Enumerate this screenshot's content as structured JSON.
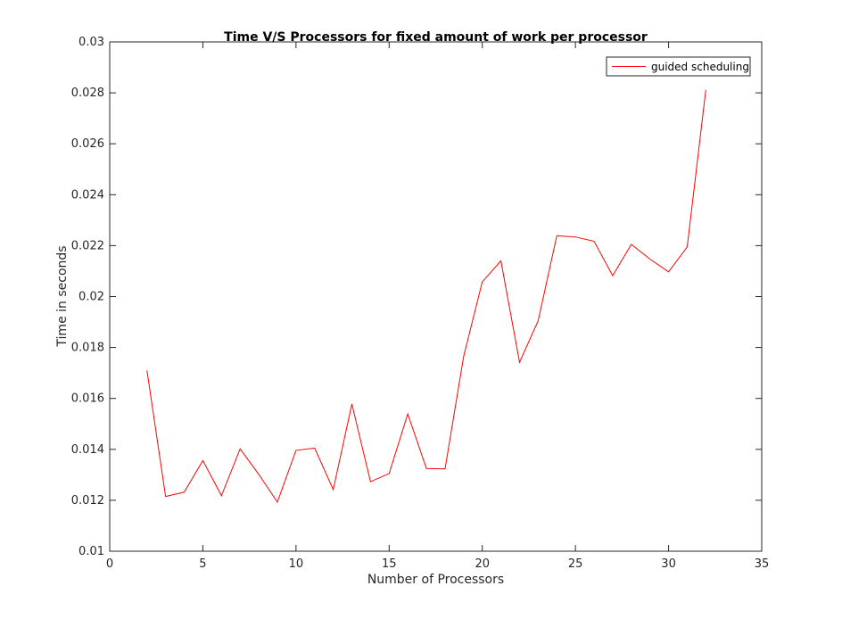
{
  "chart_data": {
    "type": "line",
    "title": "Time V/S Processors for fixed amount of work per processor",
    "xlabel": "Number of Processors",
    "ylabel": "Time in seconds",
    "xlim": [
      0,
      35
    ],
    "ylim": [
      0.01,
      0.03
    ],
    "xticks": [
      "0",
      "5",
      "10",
      "15",
      "20",
      "25",
      "30",
      "35"
    ],
    "yticks": [
      "0.01",
      "0.012",
      "0.014",
      "0.016",
      "0.018",
      "0.02",
      "0.022",
      "0.024",
      "0.026",
      "0.028",
      "0.03"
    ],
    "grid": false,
    "legend_position": "top-right",
    "series": [
      {
        "name": "guided scheduling",
        "color": "#ff0000",
        "x": [
          2,
          3,
          4,
          5,
          6,
          7,
          8,
          9,
          10,
          11,
          12,
          13,
          14,
          15,
          16,
          17,
          18,
          19,
          20,
          21,
          22,
          23,
          24,
          25,
          26,
          27,
          28,
          29,
          30,
          31,
          32
        ],
        "y": [
          0.0171,
          0.01215,
          0.01232,
          0.01356,
          0.01218,
          0.01402,
          0.01302,
          0.01193,
          0.01396,
          0.01405,
          0.01242,
          0.01578,
          0.01273,
          0.01305,
          0.01539,
          0.01325,
          0.01323,
          0.01765,
          0.02058,
          0.0214,
          0.01742,
          0.01905,
          0.02239,
          0.02234,
          0.02217,
          0.02082,
          0.02205,
          0.02147,
          0.02097,
          0.02195,
          0.02812
        ]
      }
    ]
  }
}
